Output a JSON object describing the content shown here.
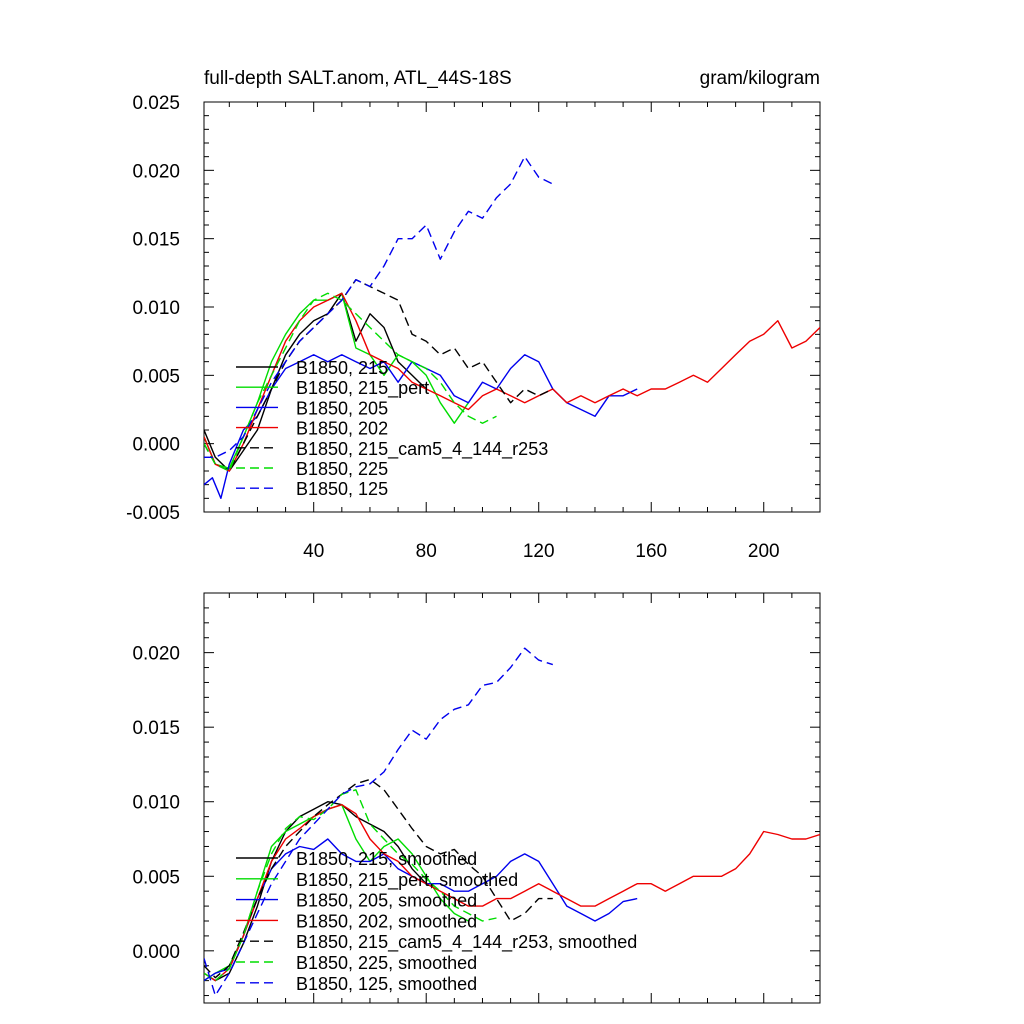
{
  "chart_data": [
    {
      "type": "line",
      "title": "full-depth SALT.anom, ATL_44S-18S",
      "units": "gram/kilogram",
      "xlim": [
        1,
        220
      ],
      "ylim": [
        -0.005,
        0.025
      ],
      "x_ticks": [
        40,
        80,
        120,
        160,
        200
      ],
      "y_ticks": [
        -0.005,
        0.0,
        0.005,
        0.01,
        0.015,
        0.02,
        0.025
      ],
      "y_tick_labels": [
        "-0.005",
        "0.000",
        "0.005",
        "0.010",
        "0.015",
        "0.020",
        "0.025"
      ],
      "legend_position": "lower-left",
      "series": [
        {
          "name": "B1850, 215",
          "color": "#000000",
          "dash": false,
          "x": [
            1,
            5,
            10,
            15,
            20,
            25,
            30,
            35,
            40,
            45,
            50,
            55,
            60,
            65,
            70,
            75,
            80
          ],
          "y": [
            0.001,
            -0.001,
            -0.002,
            -0.0005,
            0.001,
            0.004,
            0.0065,
            0.008,
            0.009,
            0.0095,
            0.011,
            0.0075,
            0.0095,
            0.0085,
            0.006,
            0.005,
            0.004
          ]
        },
        {
          "name": "B1850, 215_pert",
          "color": "#00dd00",
          "dash": false,
          "x": [
            1,
            5,
            10,
            15,
            20,
            25,
            30,
            35,
            40,
            45,
            50,
            55,
            60,
            65,
            70,
            75,
            80,
            85,
            90,
            95
          ],
          "y": [
            0.0005,
            -0.0015,
            -0.0018,
            0.0005,
            0.003,
            0.006,
            0.008,
            0.0095,
            0.0105,
            0.0105,
            0.011,
            0.007,
            0.0065,
            0.005,
            0.0065,
            0.006,
            0.005,
            0.003,
            0.0015,
            0.003
          ]
        },
        {
          "name": "B1850, 205",
          "color": "#0000ee",
          "dash": false,
          "x": [
            1,
            4,
            7,
            10,
            15,
            20,
            25,
            30,
            35,
            40,
            45,
            50,
            55,
            60,
            65,
            70,
            75,
            80,
            85,
            90,
            95,
            100,
            105,
            110,
            115,
            120,
            125,
            130,
            135,
            140,
            145,
            150,
            155
          ],
          "y": [
            -0.003,
            -0.0025,
            -0.004,
            -0.0015,
            0.001,
            0.002,
            0.004,
            0.0055,
            0.006,
            0.0065,
            0.006,
            0.0065,
            0.006,
            0.0055,
            0.006,
            0.0045,
            0.006,
            0.0055,
            0.005,
            0.0035,
            0.003,
            0.0045,
            0.004,
            0.0055,
            0.0065,
            0.006,
            0.004,
            0.003,
            0.0025,
            0.002,
            0.0035,
            0.0035,
            0.004
          ]
        },
        {
          "name": "B1850, 202",
          "color": "#ee0000",
          "dash": false,
          "x": [
            1,
            5,
            10,
            15,
            20,
            25,
            30,
            35,
            40,
            45,
            50,
            55,
            60,
            65,
            70,
            75,
            80,
            85,
            90,
            95,
            100,
            105,
            110,
            115,
            120,
            125,
            130,
            135,
            140,
            145,
            150,
            155,
            160,
            165,
            170,
            175,
            180,
            185,
            190,
            195,
            200,
            205,
            210,
            215,
            220
          ],
          "y": [
            0.0005,
            -0.0015,
            -0.002,
            0.0,
            0.0025,
            0.005,
            0.0075,
            0.009,
            0.01,
            0.0105,
            0.011,
            0.009,
            0.0065,
            0.006,
            0.0055,
            0.0045,
            0.004,
            0.0035,
            0.003,
            0.0025,
            0.0035,
            0.004,
            0.0035,
            0.003,
            0.0035,
            0.004,
            0.003,
            0.0035,
            0.003,
            0.0035,
            0.004,
            0.0035,
            0.004,
            0.004,
            0.0045,
            0.005,
            0.0045,
            0.0055,
            0.0065,
            0.0075,
            0.008,
            0.009,
            0.007,
            0.0075,
            0.0085
          ]
        },
        {
          "name": "B1850, 215_cam5_4_144_r253",
          "color": "#000000",
          "dash": true,
          "x": [
            1,
            5,
            10,
            15,
            20,
            25,
            30,
            35,
            40,
            45,
            50,
            55,
            60,
            65,
            70,
            75,
            80,
            85,
            90,
            95,
            100,
            105,
            110,
            115,
            120,
            125
          ],
          "y": [
            0.0,
            -0.0015,
            -0.002,
            0.0,
            0.002,
            0.004,
            0.006,
            0.0075,
            0.0085,
            0.0095,
            0.0105,
            0.012,
            0.0115,
            0.011,
            0.0105,
            0.008,
            0.0075,
            0.0065,
            0.007,
            0.0055,
            0.006,
            0.0045,
            0.003,
            0.004,
            0.0035,
            0.004
          ]
        },
        {
          "name": "B1850, 225",
          "color": "#00dd00",
          "dash": true,
          "x": [
            1,
            5,
            10,
            15,
            20,
            25,
            30,
            35,
            40,
            45,
            50,
            55,
            60,
            65,
            70,
            75,
            80,
            85,
            90,
            95,
            100,
            105
          ],
          "y": [
            0.0,
            -0.0015,
            -0.002,
            0.0005,
            0.003,
            0.005,
            0.007,
            0.009,
            0.0105,
            0.011,
            0.0105,
            0.0095,
            0.0085,
            0.0075,
            0.0065,
            0.006,
            0.0055,
            0.0045,
            0.003,
            0.002,
            0.0015,
            0.002
          ]
        },
        {
          "name": "B1850, 125",
          "color": "#0000ee",
          "dash": true,
          "x": [
            1,
            5,
            10,
            15,
            20,
            25,
            30,
            35,
            40,
            45,
            50,
            55,
            60,
            65,
            70,
            75,
            80,
            85,
            90,
            95,
            100,
            105,
            110,
            115,
            120,
            125
          ],
          "y": [
            -0.001,
            -0.001,
            -0.0005,
            0.0005,
            0.0025,
            0.0045,
            0.006,
            0.0075,
            0.0085,
            0.0095,
            0.0105,
            0.012,
            0.0115,
            0.013,
            0.015,
            0.015,
            0.016,
            0.0135,
            0.0155,
            0.017,
            0.0165,
            0.018,
            0.019,
            0.021,
            0.0195,
            0.019
          ]
        }
      ]
    },
    {
      "type": "line",
      "title": "",
      "units": "",
      "xlim": [
        1,
        220
      ],
      "ylim": [
        -0.0035,
        0.024
      ],
      "x_ticks": [
        40,
        80,
        120,
        160,
        200
      ],
      "y_ticks": [
        0.0,
        0.005,
        0.01,
        0.015,
        0.02
      ],
      "y_tick_labels": [
        "0.000",
        "0.005",
        "0.010",
        "0.015",
        "0.020"
      ],
      "legend_position": "lower-left",
      "series": [
        {
          "name": "B1850, 215, smoothed",
          "color": "#000000",
          "dash": false,
          "x": [
            1,
            5,
            10,
            15,
            20,
            25,
            30,
            35,
            40,
            45,
            50,
            55,
            60,
            65,
            70,
            75,
            80
          ],
          "y": [
            -0.0015,
            -0.002,
            -0.0015,
            0.0005,
            0.003,
            0.006,
            0.008,
            0.009,
            0.0095,
            0.01,
            0.0098,
            0.009,
            0.0085,
            0.008,
            0.007,
            0.0055,
            0.0045
          ]
        },
        {
          "name": "B1850, 215_pert, smoothed",
          "color": "#00dd00",
          "dash": false,
          "x": [
            1,
            5,
            10,
            15,
            20,
            25,
            30,
            35,
            40,
            45,
            50,
            55,
            60,
            65,
            70,
            75,
            80,
            85,
            90,
            95
          ],
          "y": [
            -0.002,
            -0.0015,
            -0.001,
            0.001,
            0.004,
            0.007,
            0.008,
            0.0085,
            0.009,
            0.0095,
            0.0098,
            0.0075,
            0.006,
            0.007,
            0.0075,
            0.0065,
            0.005,
            0.0035,
            0.0025,
            0.002
          ]
        },
        {
          "name": "B1850, 205, smoothed",
          "color": "#0000ee",
          "dash": false,
          "x": [
            1,
            5,
            10,
            15,
            20,
            25,
            30,
            35,
            40,
            45,
            50,
            55,
            60,
            65,
            70,
            75,
            80,
            85,
            90,
            95,
            100,
            105,
            110,
            115,
            120,
            125,
            130,
            135,
            140,
            145,
            150,
            155
          ],
          "y": [
            -0.002,
            -0.0015,
            -0.0012,
            0.001,
            0.0035,
            0.0055,
            0.0065,
            0.007,
            0.0068,
            0.0075,
            0.0065,
            0.006,
            0.006,
            0.0065,
            0.0055,
            0.005,
            0.0045,
            0.0045,
            0.004,
            0.004,
            0.0045,
            0.005,
            0.006,
            0.0065,
            0.006,
            0.0045,
            0.003,
            0.0025,
            0.002,
            0.0025,
            0.0033,
            0.0035
          ]
        },
        {
          "name": "B1850, 202, smoothed",
          "color": "#ee0000",
          "dash": false,
          "x": [
            1,
            5,
            10,
            15,
            20,
            25,
            30,
            35,
            40,
            45,
            50,
            55,
            60,
            65,
            70,
            75,
            80,
            85,
            90,
            95,
            100,
            105,
            110,
            115,
            120,
            125,
            130,
            135,
            140,
            145,
            150,
            155,
            160,
            165,
            170,
            175,
            180,
            185,
            190,
            195,
            200,
            205,
            210,
            215,
            220
          ],
          "y": [
            -0.0015,
            -0.002,
            -0.0012,
            0.001,
            0.0035,
            0.006,
            0.0075,
            0.0082,
            0.009,
            0.0095,
            0.0098,
            0.0092,
            0.0075,
            0.0065,
            0.006,
            0.005,
            0.0045,
            0.004,
            0.0035,
            0.003,
            0.003,
            0.0035,
            0.0035,
            0.004,
            0.0045,
            0.004,
            0.0035,
            0.003,
            0.003,
            0.0035,
            0.004,
            0.0045,
            0.0045,
            0.004,
            0.0045,
            0.005,
            0.005,
            0.005,
            0.0055,
            0.0065,
            0.008,
            0.0078,
            0.0075,
            0.0075,
            0.0078
          ]
        },
        {
          "name": "B1850, 215_cam5_4_144_r253, smoothed",
          "color": "#000000",
          "dash": true,
          "x": [
            1,
            5,
            10,
            15,
            20,
            25,
            30,
            35,
            40,
            45,
            50,
            55,
            60,
            65,
            70,
            75,
            80,
            85,
            90,
            95,
            100,
            105,
            110,
            115,
            120,
            125
          ],
          "y": [
            -0.001,
            -0.0018,
            -0.001,
            0.0012,
            0.0035,
            0.0055,
            0.007,
            0.008,
            0.009,
            0.0098,
            0.0105,
            0.0112,
            0.0115,
            0.0108,
            0.0095,
            0.0082,
            0.007,
            0.0065,
            0.0068,
            0.0058,
            0.005,
            0.0035,
            0.002,
            0.0025,
            0.0035,
            0.0035
          ]
        },
        {
          "name": "B1850, 225, smoothed",
          "color": "#00dd00",
          "dash": true,
          "x": [
            1,
            5,
            10,
            15,
            20,
            25,
            30,
            35,
            40,
            45,
            50,
            55,
            60,
            65,
            70,
            75,
            80,
            85,
            90,
            95,
            100,
            105
          ],
          "y": [
            -0.0015,
            -0.002,
            -0.0012,
            0.001,
            0.004,
            0.0065,
            0.0082,
            0.009,
            0.0088,
            0.0095,
            0.0105,
            0.0108,
            0.0085,
            0.0075,
            0.0065,
            0.0058,
            0.0048,
            0.004,
            0.003,
            0.0025,
            0.002,
            0.0022
          ]
        },
        {
          "name": "B1850, 125, smoothed",
          "color": "#0000ee",
          "dash": true,
          "x": [
            1,
            5,
            10,
            15,
            20,
            25,
            30,
            35,
            40,
            45,
            50,
            55,
            60,
            65,
            70,
            75,
            80,
            85,
            90,
            95,
            100,
            105,
            110,
            115,
            120,
            125
          ],
          "y": [
            -0.0005,
            -0.003,
            -0.0015,
            0.0005,
            0.0025,
            0.0045,
            0.006,
            0.0075,
            0.0085,
            0.0095,
            0.0105,
            0.011,
            0.0112,
            0.012,
            0.0135,
            0.0148,
            0.0142,
            0.0155,
            0.0162,
            0.0165,
            0.0178,
            0.018,
            0.019,
            0.0203,
            0.0195,
            0.0192
          ]
        }
      ]
    }
  ]
}
